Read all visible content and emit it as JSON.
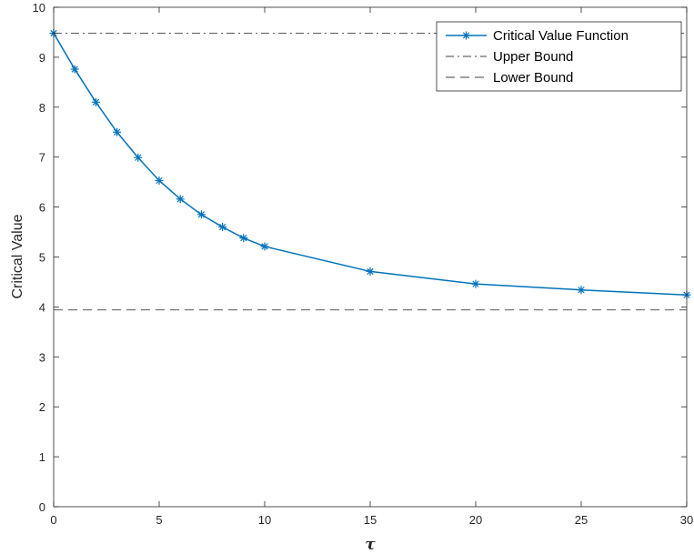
{
  "chart_data": {
    "type": "line",
    "title": "",
    "xlabel": "τ",
    "ylabel": "Critical Value",
    "xlim": [
      0,
      30
    ],
    "ylim": [
      0,
      10
    ],
    "xticks": [
      0,
      5,
      10,
      15,
      20,
      25,
      30
    ],
    "yticks": [
      0,
      1,
      2,
      3,
      4,
      5,
      6,
      7,
      8,
      9,
      10
    ],
    "xtick_labels": [
      "0",
      "5",
      "10",
      "15",
      "20",
      "25",
      "30"
    ],
    "ytick_labels": [
      "0",
      "1",
      "2",
      "3",
      "4",
      "5",
      "6",
      "7",
      "8",
      "9",
      "10"
    ],
    "grid": false,
    "legend_position": "top-right",
    "series": [
      {
        "name": "Critical Value Function",
        "style": "solid-with-asterisk-markers",
        "color": "#0072BD",
        "x": [
          0,
          1,
          2,
          3,
          4,
          5,
          6,
          7,
          8,
          9,
          10,
          15,
          20,
          25,
          30
        ],
        "y": [
          9.48,
          8.76,
          8.1,
          7.5,
          6.99,
          6.53,
          6.16,
          5.85,
          5.6,
          5.38,
          5.21,
          4.71,
          4.46,
          4.34,
          4.24
        ]
      },
      {
        "name": "Upper Bound",
        "style": "dash-dot",
        "color": "#404040",
        "x": [
          0,
          30
        ],
        "y": [
          9.48,
          9.48
        ]
      },
      {
        "name": "Lower Bound",
        "style": "dashed",
        "color": "#404040",
        "x": [
          0,
          30
        ],
        "y": [
          3.94,
          3.94
        ]
      }
    ]
  }
}
